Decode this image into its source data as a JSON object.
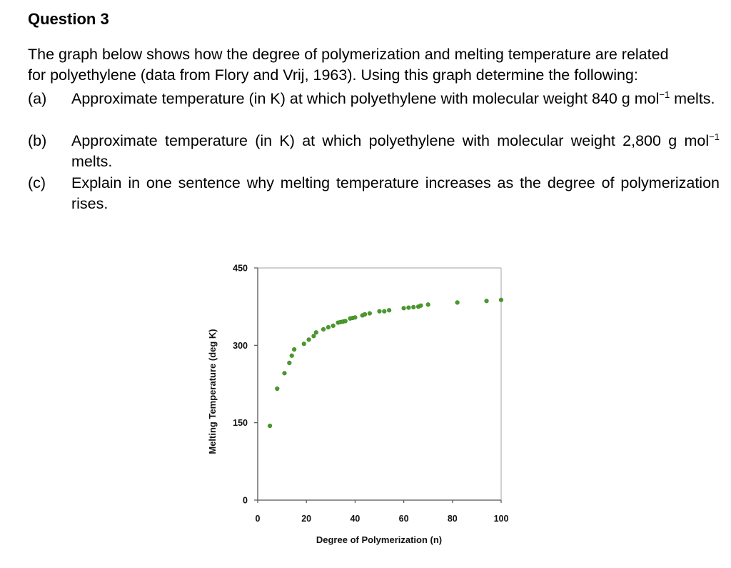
{
  "question": {
    "title": "Question 3",
    "intro_line1": "The graph below shows how the degree of polymerization and melting temperature are related",
    "intro_line2": "for polyethylene (data from Flory and Vrij, 1963). Using this graph determine the following:",
    "items": [
      {
        "label": "(a)",
        "text": "Approximate temperature (in K) at which polyethylene with molecular weight 840 g mol",
        "sup": "−1",
        "tail": " melts."
      },
      {
        "label": "(b)",
        "text": "Approximate temperature (in K) at which polyethylene with molecular weight 2,800 g mol",
        "sup": "−1",
        "tail": " melts."
      },
      {
        "label": "(c)",
        "text": "Explain in one sentence why melting temperature increases as the degree of polymerization rises.",
        "sup": "",
        "tail": ""
      }
    ]
  },
  "chart_data": {
    "type": "scatter",
    "title": "",
    "xlabel": "Degree of Polymerization (n)",
    "ylabel": "Melting Temperature (deg K)",
    "xlim": [
      0,
      100
    ],
    "ylim": [
      0,
      450
    ],
    "xticks": [
      0,
      20,
      40,
      60,
      80,
      100
    ],
    "yticks": [
      0,
      150,
      300,
      450
    ],
    "grid": false,
    "legend": null,
    "marker_color": "#4a9a2c",
    "series": [
      {
        "name": "Polyethylene (Flory and Vrij, 1963)",
        "x": [
          5,
          8,
          11,
          13,
          14,
          15,
          19,
          21,
          23,
          24,
          27,
          29,
          31,
          33,
          34,
          35,
          36,
          38,
          39,
          40,
          43,
          44,
          46,
          50,
          52,
          54,
          60,
          62,
          64,
          66,
          67,
          70,
          82,
          94,
          100
        ],
        "y": [
          144,
          216,
          246,
          266,
          280,
          292,
          303,
          311,
          318,
          325,
          331,
          335,
          338,
          344,
          345,
          346,
          347,
          352,
          353,
          354,
          358,
          360,
          362,
          366,
          366,
          368,
          372,
          373,
          374,
          375,
          377,
          379,
          383,
          386,
          388
        ]
      }
    ]
  }
}
